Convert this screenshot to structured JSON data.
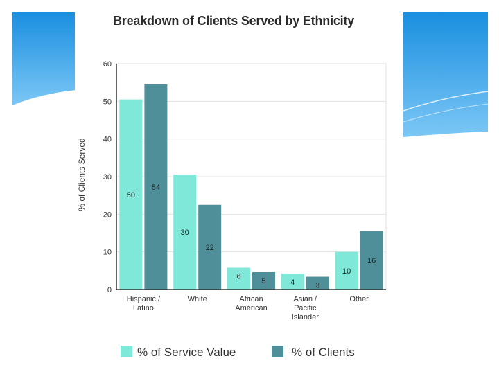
{
  "colors": {
    "service": "#7fe8d8",
    "clients": "#4f8f99",
    "grid": "#e2e2e2",
    "axis": "#333333",
    "accent_blue": "#1a95e0"
  },
  "chart_data": {
    "type": "bar",
    "title": "Breakdown of Clients Served by Ethnicity",
    "xlabel": "",
    "ylabel": "% of Clients Served",
    "ylim": [
      0,
      60
    ],
    "yticks": [
      0,
      10,
      20,
      30,
      40,
      50,
      60
    ],
    "grid": true,
    "legend_position": "bottom",
    "categories": [
      [
        "Hispanic /",
        "Latino"
      ],
      [
        "White"
      ],
      [
        "African",
        "American"
      ],
      [
        "Asian /",
        "Pacific",
        "Islander"
      ],
      [
        "Other"
      ]
    ],
    "series": [
      {
        "name": "% of Service Value",
        "values": [
          50,
          30,
          6,
          4,
          10
        ],
        "bar_heights": [
          50.5,
          30.5,
          5.8,
          4.2,
          10
        ]
      },
      {
        "name": "% of Clients",
        "values": [
          54,
          22,
          5,
          3,
          16
        ],
        "bar_heights": [
          54.5,
          22.5,
          4.6,
          3.4,
          15.5
        ]
      }
    ]
  }
}
